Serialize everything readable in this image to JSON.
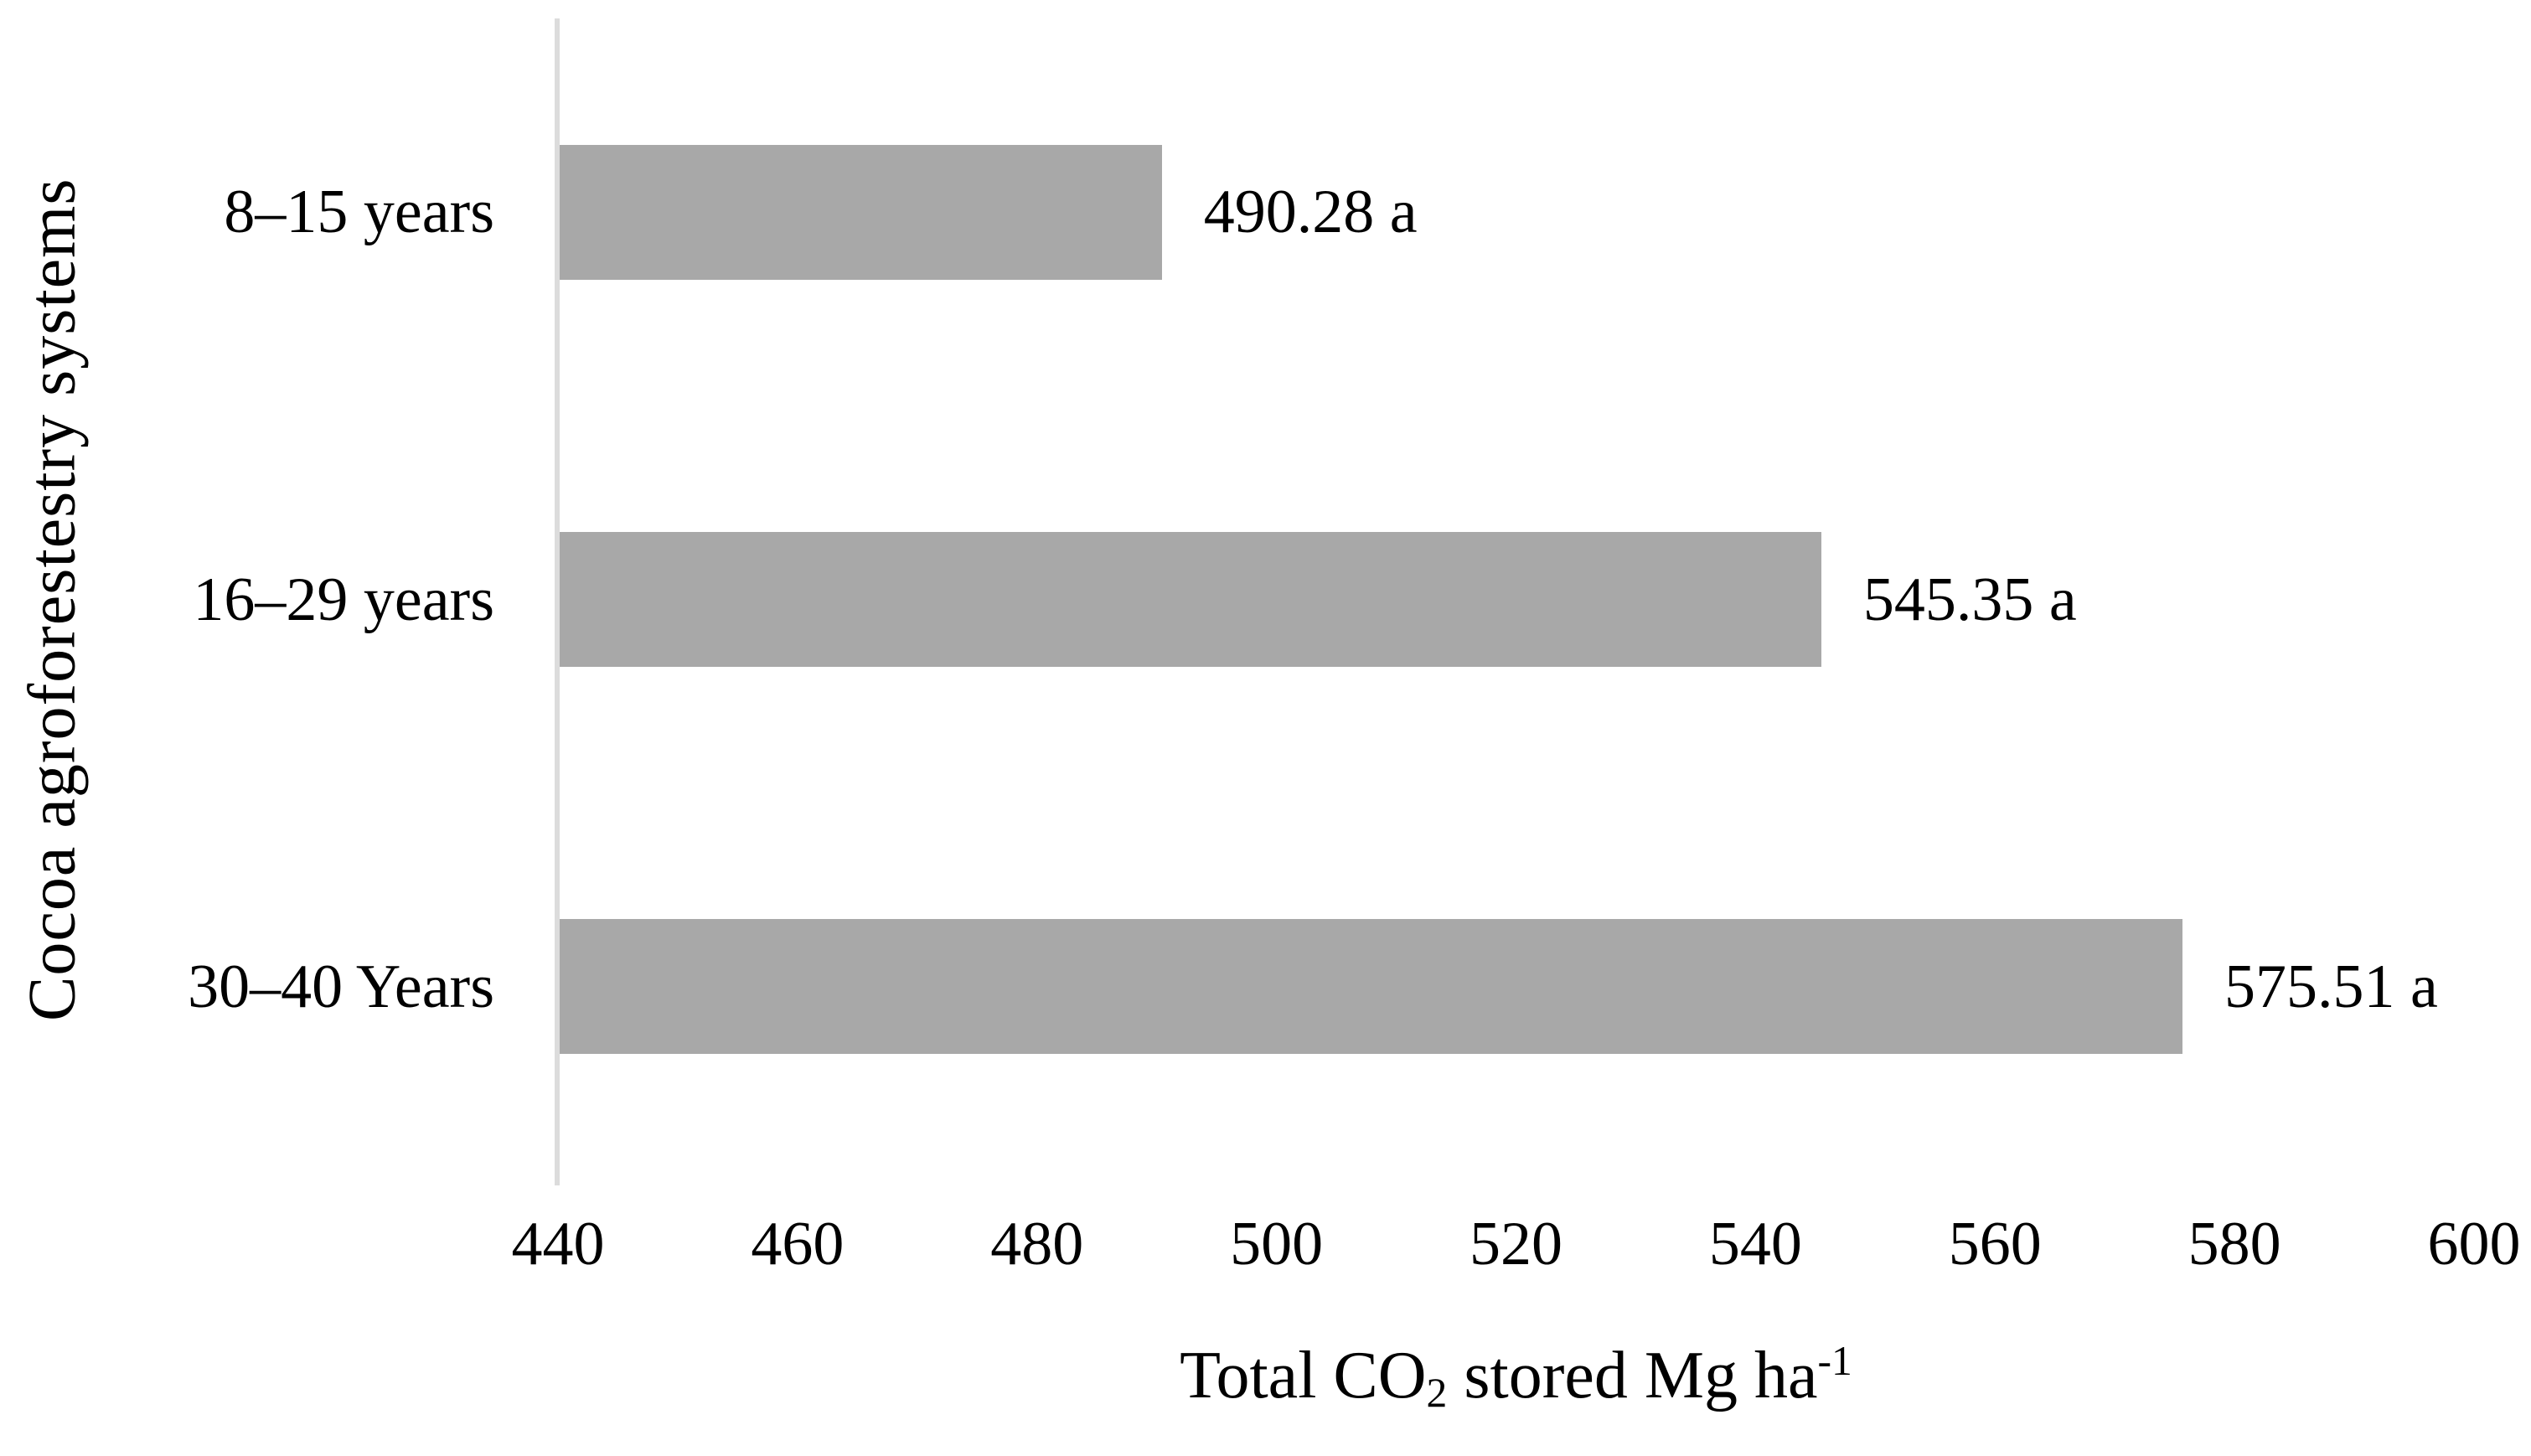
{
  "chart": {
    "y_axis_title": "Cocoa agroforestestry systems",
    "x_axis_title": {
      "prefix": "Total CO",
      "subscript": "2",
      "middle": " stored Mg ha",
      "superscript": "-1"
    }
  },
  "chart_data": {
    "type": "bar",
    "orientation": "horizontal",
    "title": "",
    "xlabel": "Total CO2 stored Mg ha-1",
    "ylabel": "Cocoa agroforestestry systems",
    "categories": [
      "8–15 years",
      "16–29 years",
      "30–40 Years"
    ],
    "values": [
      490.28,
      545.35,
      575.51
    ],
    "data_labels": [
      "490.28 a",
      "545.35 a",
      "575.51 a"
    ],
    "xlim": [
      440,
      600
    ],
    "xticks": [
      440,
      460,
      480,
      500,
      520,
      540,
      560,
      580,
      600
    ],
    "grid": false,
    "legend": false,
    "bar_color": "#a8a8a8",
    "axis_line_color": "#dcdcdc",
    "text_color": "#000000"
  }
}
